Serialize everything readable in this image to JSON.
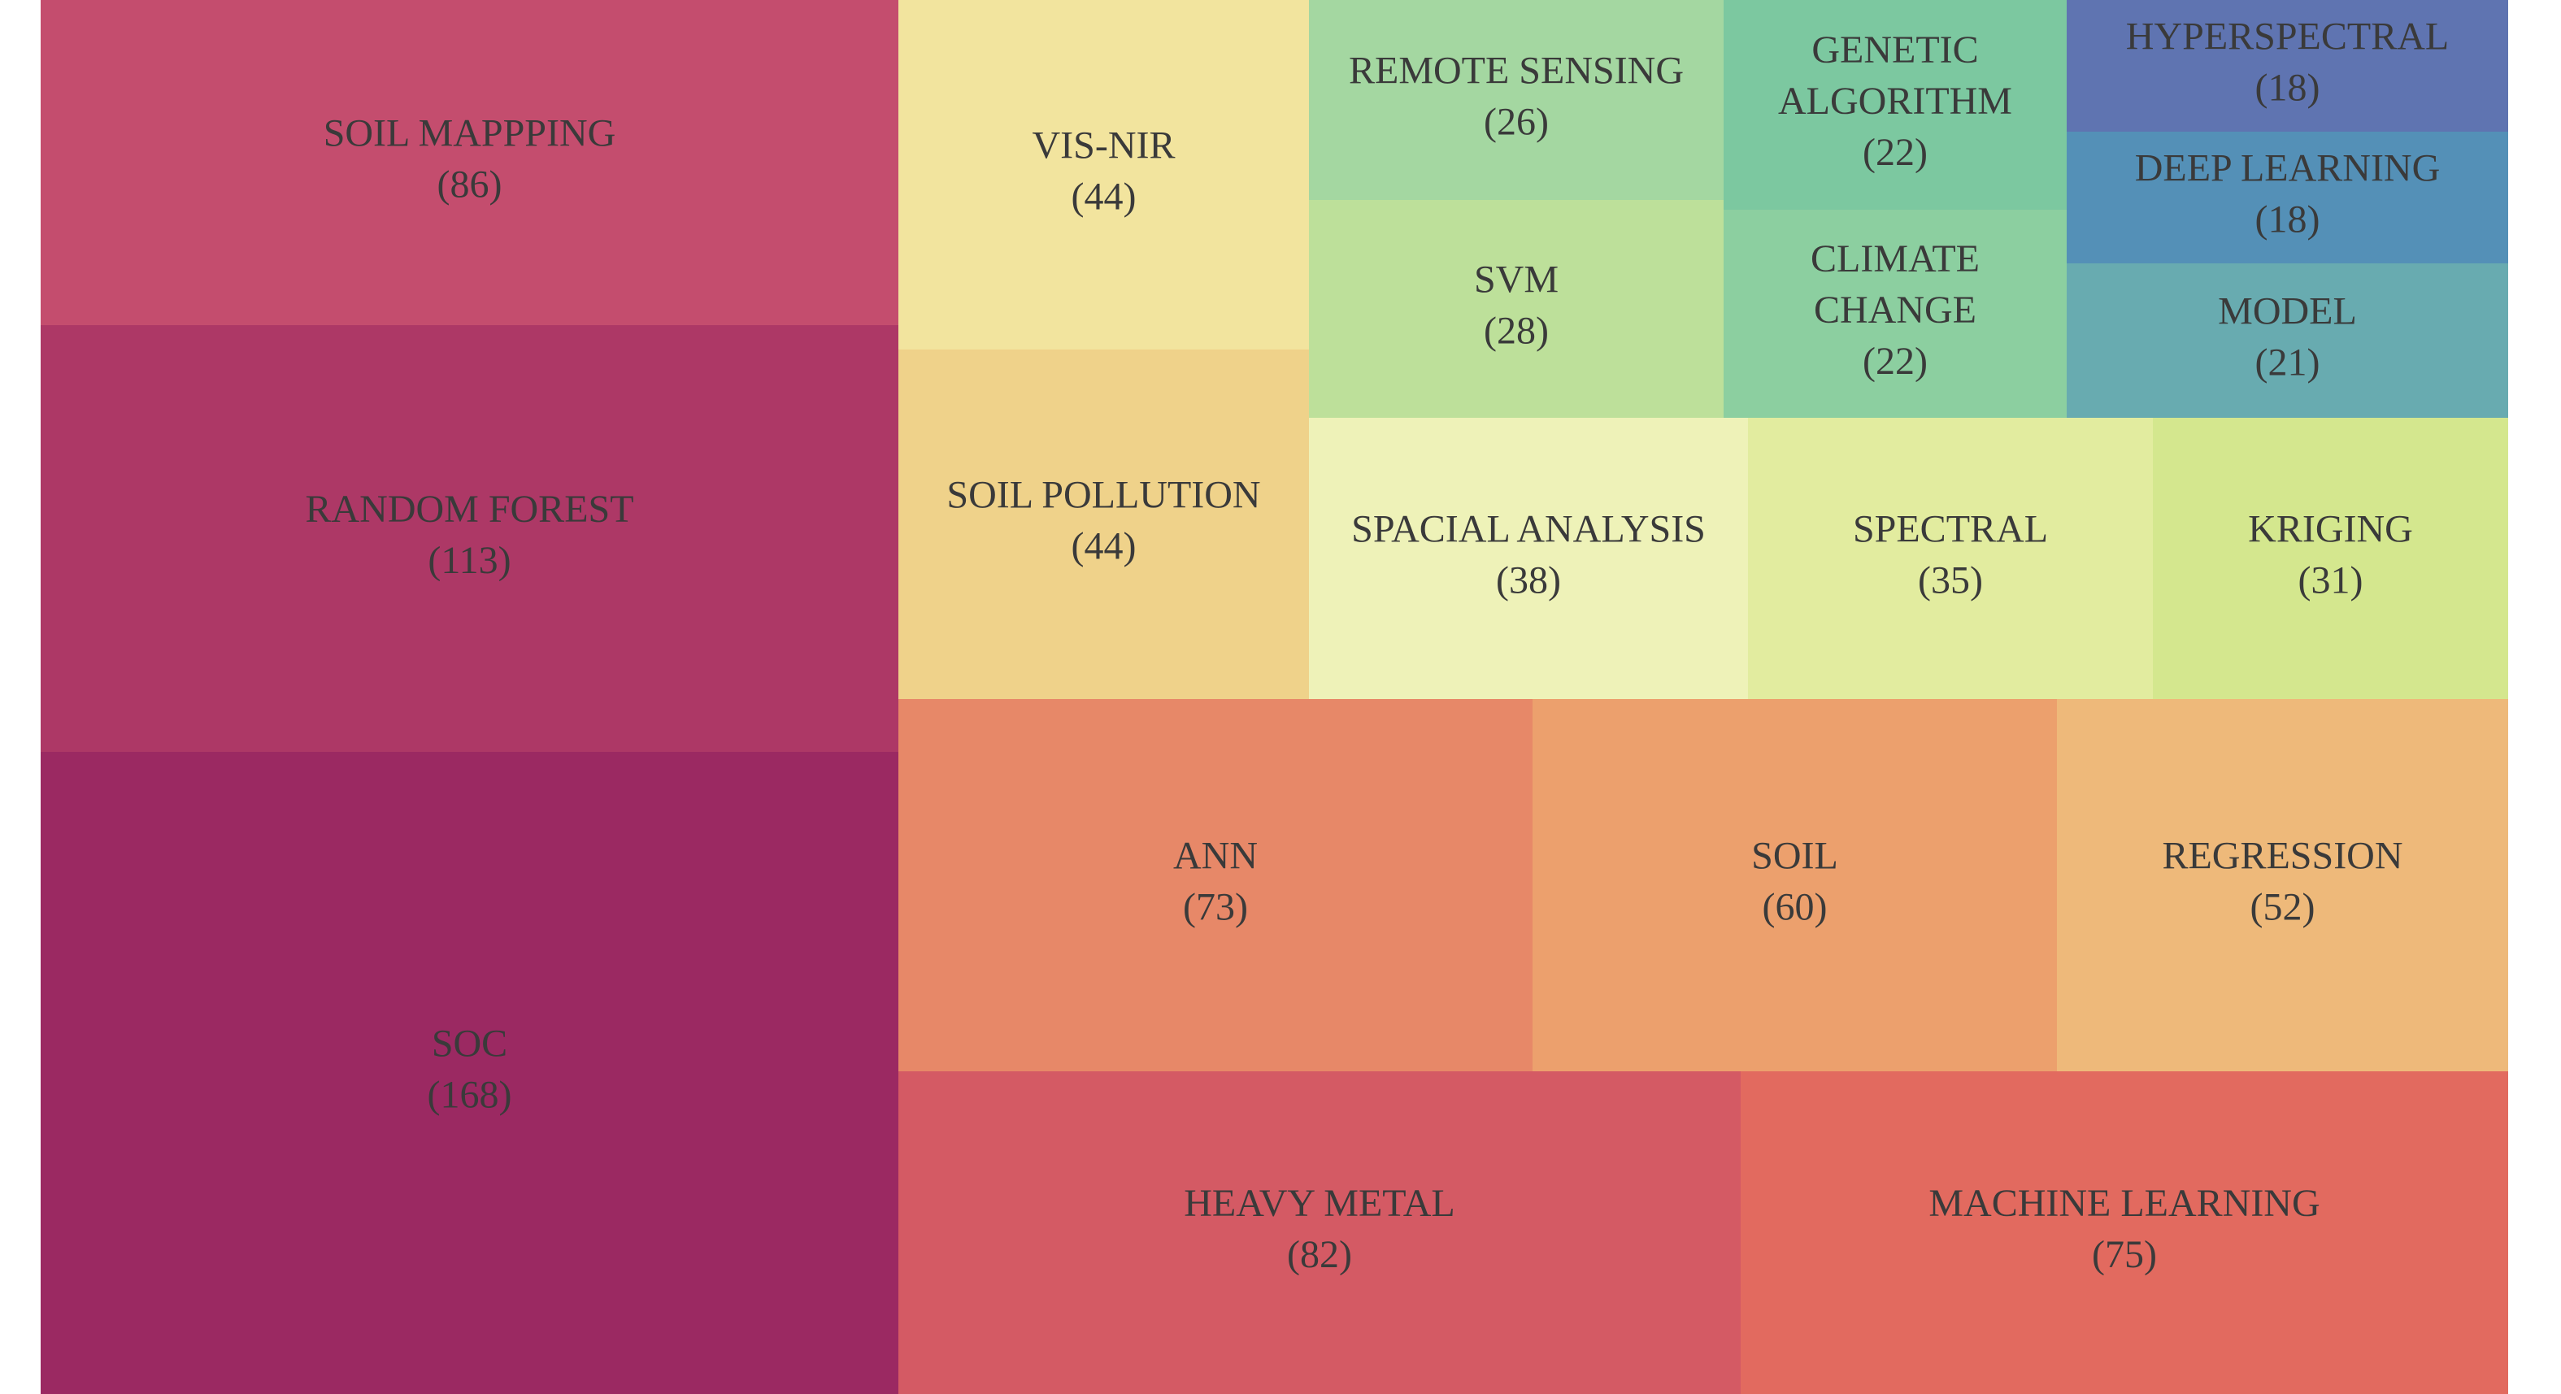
{
  "chart_data": {
    "type": "treemap",
    "title": "",
    "items": [
      {
        "label": "SOIL MAPPPING",
        "value": 86,
        "color": "#c44d6e"
      },
      {
        "label": "RANDOM FOREST",
        "value": 113,
        "color": "#ad3866"
      },
      {
        "label": "SOC",
        "value": 168,
        "color": "#9b2962"
      },
      {
        "label": "VIS-NIR",
        "value": 44,
        "color": "#f2e49e"
      },
      {
        "label": "SOIL POLLUTION",
        "value": 44,
        "color": "#efd28a"
      },
      {
        "label": "REMOTE SENSING",
        "value": 26,
        "color": "#a4d7a1"
      },
      {
        "label": "SVM",
        "value": 28,
        "color": "#bde09a"
      },
      {
        "label": "GENETIC ALGORITHM",
        "value": 22,
        "color": "#7cc8a0"
      },
      {
        "label": "CLIMATE CHANGE",
        "value": 22,
        "color": "#8ccfa0"
      },
      {
        "label": "HYPERSPECTRAL",
        "value": 18,
        "color": "#5f74b1"
      },
      {
        "label": "DEEP LEARNING",
        "value": 18,
        "color": "#5490b7"
      },
      {
        "label": "MODEL",
        "value": 21,
        "color": "#68abb0"
      },
      {
        "label": "SPACIAL ANALYSIS",
        "value": 38,
        "color": "#eef2b8"
      },
      {
        "label": "SPECTRAL",
        "value": 35,
        "color": "#e2ec9f"
      },
      {
        "label": "KRIGING",
        "value": 31,
        "color": "#d4e78e"
      },
      {
        "label": "ANN",
        "value": 73,
        "color": "#e78868"
      },
      {
        "label": "SOIL",
        "value": 60,
        "color": "#eca06d"
      },
      {
        "label": "REGRESSION",
        "value": 52,
        "color": "#eeb97a"
      },
      {
        "label": "HEAVY METAL",
        "value": 82,
        "color": "#d45a64"
      },
      {
        "label": "MACHINE LEARNING",
        "value": 75,
        "color": "#e26a5f"
      }
    ]
  }
}
